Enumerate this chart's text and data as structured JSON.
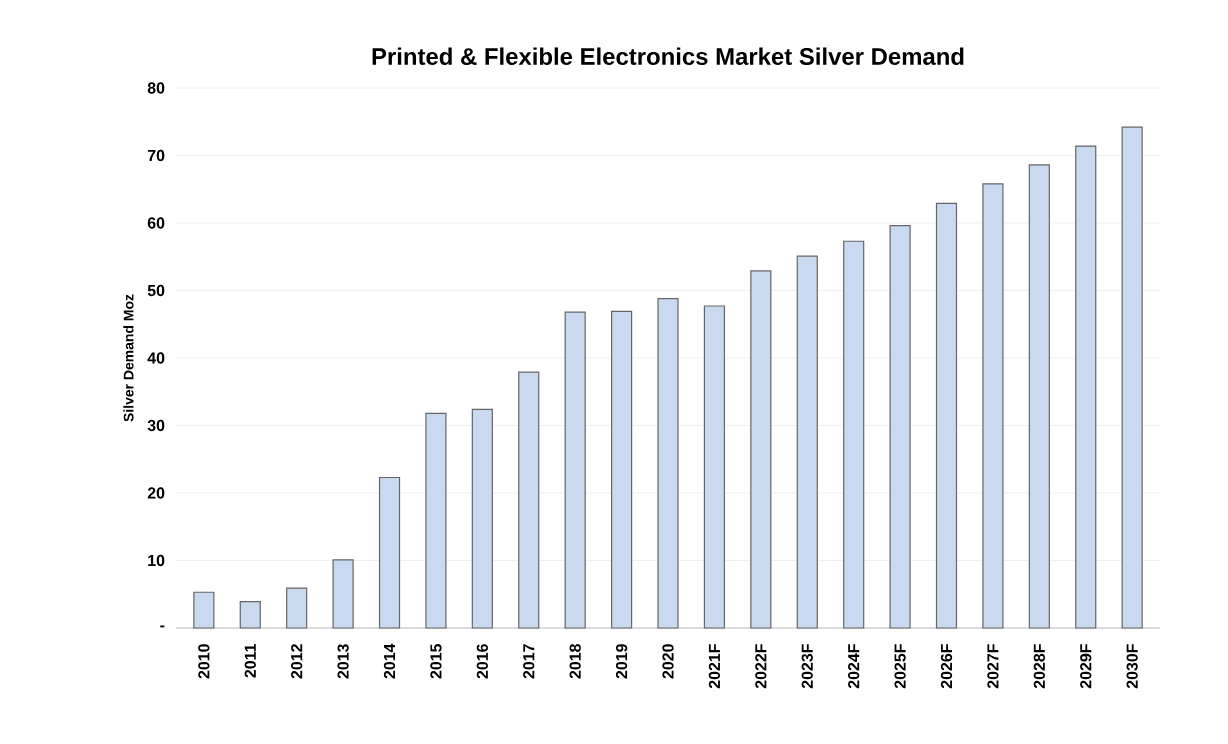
{
  "chart_data": {
    "type": "bar",
    "title": "Printed & Flexible Electronics Market  Silver Demand",
    "ylabel": "Silver Demand Moz",
    "categories": [
      "2010",
      "2011",
      "2012",
      "2013",
      "2014",
      "2015",
      "2016",
      "2017",
      "2018",
      "2019",
      "2020",
      "2021F",
      "2022F",
      "2023F",
      "2024F",
      "2025F",
      "2026F",
      "2027F",
      "2028F",
      "2029F",
      "2030F"
    ],
    "values": [
      5.3,
      3.9,
      5.9,
      10.1,
      22.3,
      31.8,
      32.4,
      37.9,
      46.8,
      46.9,
      48.8,
      47.7,
      52.9,
      55.1,
      57.3,
      59.6,
      62.9,
      65.8,
      68.6,
      71.4,
      74.2
    ],
    "color": "#c9daf0",
    "ylim": [
      0,
      80
    ],
    "yticks": [
      {
        "value": 0,
        "label": "-"
      },
      10,
      20,
      30,
      40,
      50,
      60,
      70,
      80
    ],
    "grid": "y"
  }
}
